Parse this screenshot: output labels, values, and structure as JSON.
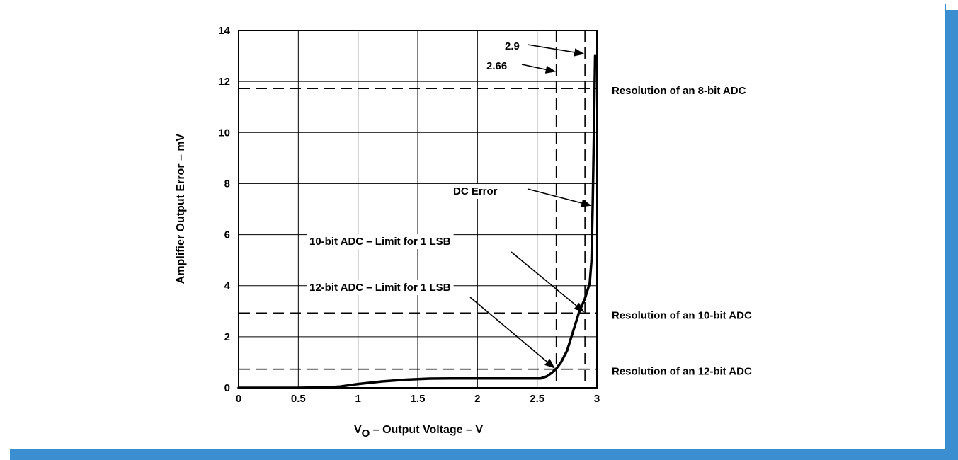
{
  "colors": {
    "frame": "#3b8fd0",
    "ink": "#000000"
  },
  "chart_data": {
    "type": "line",
    "title": "",
    "xlabel_main": "V",
    "xlabel_sub": "O",
    "xlabel_rest": " – Output Voltage – V",
    "ylabel": "Amplifier Output Error – mV",
    "xlim": [
      0,
      3
    ],
    "ylim": [
      0,
      14
    ],
    "x_ticks": [
      "0",
      "0.5",
      "1",
      "1.5",
      "2",
      "2.5",
      "3"
    ],
    "y_ticks": [
      "0",
      "2",
      "4",
      "6",
      "8",
      "10",
      "12",
      "14"
    ],
    "grid": true,
    "series": [
      {
        "points": [
          [
            0,
            0
          ],
          [
            0.5,
            0
          ],
          [
            0.75,
            0.02
          ],
          [
            0.85,
            0.05
          ],
          [
            1.0,
            0.15
          ],
          [
            1.2,
            0.25
          ],
          [
            1.4,
            0.32
          ],
          [
            1.6,
            0.36
          ],
          [
            1.8,
            0.37
          ],
          [
            2.0,
            0.37
          ],
          [
            2.2,
            0.37
          ],
          [
            2.4,
            0.37
          ],
          [
            2.53,
            0.37
          ],
          [
            2.58,
            0.45
          ],
          [
            2.62,
            0.58
          ],
          [
            2.66,
            0.75
          ],
          [
            2.7,
            1.0
          ],
          [
            2.75,
            1.45
          ],
          [
            2.8,
            2.2
          ],
          [
            2.85,
            2.95
          ],
          [
            2.9,
            3.5
          ],
          [
            2.94,
            4.1
          ],
          [
            2.955,
            5.0
          ],
          [
            2.965,
            7.2
          ],
          [
            2.975,
            10.0
          ],
          [
            2.985,
            13.0
          ]
        ]
      }
    ],
    "reference_lines_y": [
      {
        "value": 11.72,
        "label": "Resolution of an 8-bit ADC"
      },
      {
        "value": 2.93,
        "label": "Resolution of an 10-bit ADC"
      },
      {
        "value": 0.73,
        "label": "Resolution of an 12-bit ADC"
      }
    ],
    "reference_lines_x": [
      {
        "value": 2.66,
        "label": "2.66"
      },
      {
        "value": 2.9,
        "label": "2.9"
      }
    ],
    "annotations": [
      {
        "text": "DC Error",
        "target": [
          2.965,
          7.2
        ]
      },
      {
        "text": "10-bit ADC – Limit for 1 LSB",
        "target": [
          2.9,
          2.93
        ]
      },
      {
        "text": "12-bit ADC – Limit for 1 LSB",
        "target": [
          2.66,
          0.73
        ]
      }
    ]
  }
}
